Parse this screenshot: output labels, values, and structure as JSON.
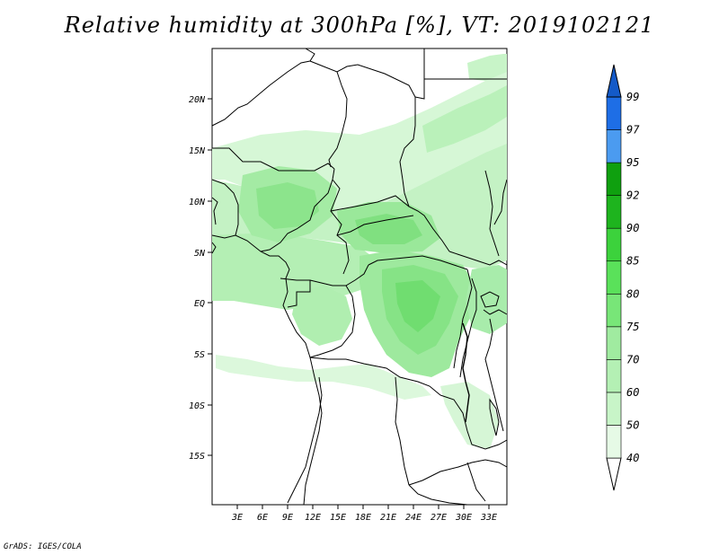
{
  "title": "Relative humidity at 300hPa [%], VT: 2019102121",
  "credit": "GrADS: IGES/COLA",
  "map": {
    "lat_labels": [
      "20N",
      "15N",
      "10N",
      "5N",
      "EQ",
      "5S",
      "10S",
      "15S"
    ],
    "lon_labels": [
      "3E",
      "6E",
      "9E",
      "12E",
      "15E",
      "18E",
      "21E",
      "24E",
      "27E",
      "30E",
      "33E"
    ]
  },
  "colorbar": {
    "levels": [
      "40",
      "50",
      "60",
      "70",
      "75",
      "80",
      "85",
      "90",
      "92",
      "95",
      "97",
      "99"
    ],
    "colors": [
      "#ffffff",
      "#e6fae6",
      "#c8f5c8",
      "#b4f0b4",
      "#a0eba0",
      "#78e678",
      "#5ae15a",
      "#3cd23c",
      "#1eb41e",
      "#0fa00f",
      "#4b9bf0",
      "#1e6ee6",
      "#145ac8"
    ]
  }
}
